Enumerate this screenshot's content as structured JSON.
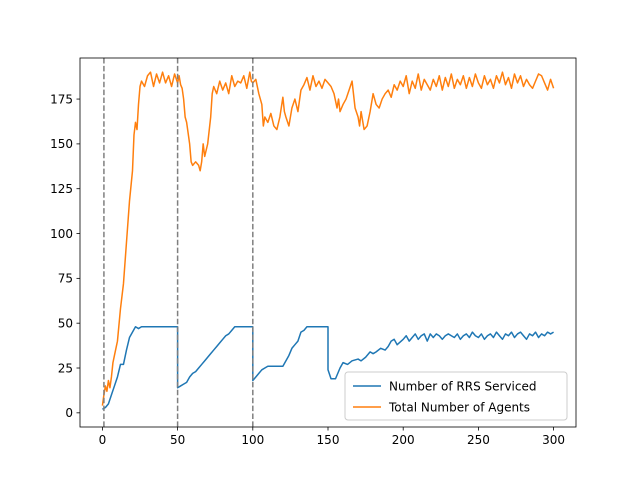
{
  "chart_data": {
    "type": "line",
    "title": "",
    "xlabel": "",
    "ylabel": "",
    "xlim": [
      -14.9,
      314.9
    ],
    "ylim": [
      -7.9,
      197.9
    ],
    "x_ticks": [
      0,
      50,
      100,
      150,
      200,
      250,
      300
    ],
    "y_ticks": [
      0,
      25,
      50,
      75,
      100,
      125,
      150,
      175
    ],
    "vlines": [
      1,
      50,
      100
    ],
    "legend_position": "lower right",
    "grid": false,
    "series": [
      {
        "name": "Number of RRS Serviced",
        "color": "#1f77b4",
        "points": [
          [
            0,
            2
          ],
          [
            2,
            3
          ],
          [
            4,
            5
          ],
          [
            6,
            10
          ],
          [
            8,
            15
          ],
          [
            10,
            20
          ],
          [
            12,
            27
          ],
          [
            14,
            27
          ],
          [
            16,
            35
          ],
          [
            18,
            42
          ],
          [
            20,
            45
          ],
          [
            22,
            48
          ],
          [
            24,
            47
          ],
          [
            26,
            48
          ],
          [
            30,
            48
          ],
          [
            35,
            48
          ],
          [
            40,
            48
          ],
          [
            45,
            48
          ],
          [
            50,
            48
          ],
          [
            50,
            14
          ],
          [
            52,
            15
          ],
          [
            54,
            16
          ],
          [
            56,
            17
          ],
          [
            58,
            20
          ],
          [
            60,
            22
          ],
          [
            62,
            23
          ],
          [
            64,
            25
          ],
          [
            66,
            27
          ],
          [
            68,
            29
          ],
          [
            70,
            31
          ],
          [
            72,
            33
          ],
          [
            74,
            35
          ],
          [
            76,
            37
          ],
          [
            78,
            39
          ],
          [
            80,
            41
          ],
          [
            82,
            43
          ],
          [
            84,
            44
          ],
          [
            86,
            46
          ],
          [
            88,
            48
          ],
          [
            92,
            48
          ],
          [
            96,
            48
          ],
          [
            100,
            48
          ],
          [
            100,
            18
          ],
          [
            102,
            20
          ],
          [
            104,
            22
          ],
          [
            106,
            24
          ],
          [
            108,
            25
          ],
          [
            110,
            26
          ],
          [
            115,
            26
          ],
          [
            120,
            26
          ],
          [
            124,
            32
          ],
          [
            126,
            36
          ],
          [
            128,
            38
          ],
          [
            130,
            40
          ],
          [
            132,
            45
          ],
          [
            134,
            46
          ],
          [
            136,
            48
          ],
          [
            140,
            48
          ],
          [
            145,
            48
          ],
          [
            150,
            48
          ],
          [
            150,
            24
          ],
          [
            152,
            19
          ],
          [
            155,
            19
          ],
          [
            158,
            25
          ],
          [
            160,
            28
          ],
          [
            163,
            27
          ],
          [
            166,
            29
          ],
          [
            170,
            30
          ],
          [
            172,
            29
          ],
          [
            175,
            31
          ],
          [
            178,
            34
          ],
          [
            180,
            33
          ],
          [
            182,
            34
          ],
          [
            185,
            36
          ],
          [
            188,
            35
          ],
          [
            190,
            37
          ],
          [
            192,
            40
          ],
          [
            194,
            41
          ],
          [
            196,
            38
          ],
          [
            200,
            41
          ],
          [
            202,
            43
          ],
          [
            204,
            40
          ],
          [
            206,
            42
          ],
          [
            208,
            44
          ],
          [
            210,
            41
          ],
          [
            212,
            43
          ],
          [
            214,
            44
          ],
          [
            216,
            40
          ],
          [
            218,
            44
          ],
          [
            220,
            42
          ],
          [
            222,
            44
          ],
          [
            224,
            43
          ],
          [
            226,
            41
          ],
          [
            228,
            43
          ],
          [
            230,
            44
          ],
          [
            232,
            43
          ],
          [
            234,
            42
          ],
          [
            236,
            44
          ],
          [
            238,
            41
          ],
          [
            240,
            43
          ],
          [
            242,
            44
          ],
          [
            244,
            42
          ],
          [
            246,
            45
          ],
          [
            248,
            43
          ],
          [
            250,
            42
          ],
          [
            252,
            44
          ],
          [
            254,
            41
          ],
          [
            256,
            43
          ],
          [
            258,
            44
          ],
          [
            260,
            42
          ],
          [
            262,
            45
          ],
          [
            264,
            43
          ],
          [
            266,
            41
          ],
          [
            268,
            44
          ],
          [
            270,
            43
          ],
          [
            272,
            45
          ],
          [
            274,
            42
          ],
          [
            276,
            44
          ],
          [
            278,
            45
          ],
          [
            280,
            43
          ],
          [
            282,
            41
          ],
          [
            284,
            44
          ],
          [
            286,
            43
          ],
          [
            288,
            45
          ],
          [
            290,
            42
          ],
          [
            292,
            44
          ],
          [
            294,
            43
          ],
          [
            296,
            45
          ],
          [
            298,
            44
          ],
          [
            300,
            45
          ]
        ]
      },
      {
        "name": "Total Number of Agents",
        "color": "#ff7f0e",
        "points": [
          [
            0,
            4
          ],
          [
            1,
            10
          ],
          [
            2,
            15
          ],
          [
            3,
            12
          ],
          [
            4,
            18
          ],
          [
            5,
            14
          ],
          [
            6,
            20
          ],
          [
            7,
            28
          ],
          [
            8,
            32
          ],
          [
            10,
            40
          ],
          [
            12,
            58
          ],
          [
            14,
            72
          ],
          [
            16,
            95
          ],
          [
            18,
            118
          ],
          [
            20,
            135
          ],
          [
            21,
            155
          ],
          [
            22,
            162
          ],
          [
            23,
            158
          ],
          [
            24,
            172
          ],
          [
            25,
            182
          ],
          [
            26,
            185
          ],
          [
            28,
            182
          ],
          [
            30,
            188
          ],
          [
            32,
            190
          ],
          [
            34,
            182
          ],
          [
            36,
            189
          ],
          [
            38,
            184
          ],
          [
            40,
            190
          ],
          [
            42,
            184
          ],
          [
            44,
            188
          ],
          [
            46,
            182
          ],
          [
            48,
            189
          ],
          [
            50,
            184
          ],
          [
            51,
            188
          ],
          [
            52,
            183
          ],
          [
            53,
            181
          ],
          [
            54,
            175
          ],
          [
            55,
            165
          ],
          [
            56,
            162
          ],
          [
            58,
            150
          ],
          [
            59,
            140
          ],
          [
            60,
            138
          ],
          [
            62,
            140
          ],
          [
            64,
            138
          ],
          [
            65,
            135
          ],
          [
            66,
            140
          ],
          [
            67,
            150
          ],
          [
            68,
            143
          ],
          [
            70,
            150
          ],
          [
            72,
            165
          ],
          [
            73,
            178
          ],
          [
            74,
            182
          ],
          [
            76,
            178
          ],
          [
            78,
            185
          ],
          [
            80,
            180
          ],
          [
            82,
            184
          ],
          [
            84,
            178
          ],
          [
            86,
            188
          ],
          [
            88,
            182
          ],
          [
            90,
            185
          ],
          [
            92,
            184
          ],
          [
            94,
            188
          ],
          [
            96,
            181
          ],
          [
            98,
            190
          ],
          [
            99,
            185
          ],
          [
            100,
            184
          ],
          [
            102,
            186
          ],
          [
            104,
            178
          ],
          [
            106,
            172
          ],
          [
            107,
            160
          ],
          [
            108,
            165
          ],
          [
            110,
            162
          ],
          [
            112,
            167
          ],
          [
            114,
            160
          ],
          [
            116,
            158
          ],
          [
            118,
            165
          ],
          [
            120,
            176
          ],
          [
            121,
            168
          ],
          [
            122,
            165
          ],
          [
            124,
            160
          ],
          [
            126,
            170
          ],
          [
            128,
            175
          ],
          [
            130,
            168
          ],
          [
            132,
            180
          ],
          [
            134,
            183
          ],
          [
            136,
            187
          ],
          [
            138,
            180
          ],
          [
            140,
            188
          ],
          [
            142,
            182
          ],
          [
            144,
            185
          ],
          [
            146,
            181
          ],
          [
            148,
            186
          ],
          [
            150,
            184
          ],
          [
            152,
            182
          ],
          [
            154,
            178
          ],
          [
            156,
            170
          ],
          [
            157,
            175
          ],
          [
            158,
            168
          ],
          [
            160,
            172
          ],
          [
            162,
            175
          ],
          [
            164,
            180
          ],
          [
            166,
            185
          ],
          [
            168,
            170
          ],
          [
            170,
            165
          ],
          [
            171,
            160
          ],
          [
            172,
            168
          ],
          [
            174,
            158
          ],
          [
            176,
            160
          ],
          [
            178,
            168
          ],
          [
            180,
            178
          ],
          [
            182,
            172
          ],
          [
            184,
            170
          ],
          [
            186,
            175
          ],
          [
            188,
            178
          ],
          [
            190,
            180
          ],
          [
            192,
            176
          ],
          [
            194,
            183
          ],
          [
            196,
            180
          ],
          [
            198,
            185
          ],
          [
            200,
            182
          ],
          [
            202,
            188
          ],
          [
            204,
            178
          ],
          [
            206,
            185
          ],
          [
            208,
            181
          ],
          [
            210,
            189
          ],
          [
            212,
            180
          ],
          [
            214,
            186
          ],
          [
            216,
            183
          ],
          [
            218,
            180
          ],
          [
            220,
            186
          ],
          [
            222,
            182
          ],
          [
            224,
            188
          ],
          [
            226,
            180
          ],
          [
            228,
            187
          ],
          [
            230,
            182
          ],
          [
            232,
            189
          ],
          [
            234,
            181
          ],
          [
            236,
            186
          ],
          [
            238,
            183
          ],
          [
            240,
            188
          ],
          [
            242,
            181
          ],
          [
            244,
            187
          ],
          [
            246,
            182
          ],
          [
            248,
            189
          ],
          [
            250,
            184
          ],
          [
            252,
            181
          ],
          [
            254,
            188
          ],
          [
            256,
            183
          ],
          [
            258,
            186
          ],
          [
            260,
            181
          ],
          [
            262,
            188
          ],
          [
            264,
            184
          ],
          [
            266,
            190
          ],
          [
            268,
            183
          ],
          [
            270,
            187
          ],
          [
            272,
            181
          ],
          [
            274,
            189
          ],
          [
            276,
            184
          ],
          [
            278,
            188
          ],
          [
            280,
            182
          ],
          [
            282,
            186
          ],
          [
            284,
            183
          ],
          [
            286,
            181
          ],
          [
            288,
            185
          ],
          [
            290,
            189
          ],
          [
            292,
            188
          ],
          [
            294,
            184
          ],
          [
            296,
            180
          ],
          [
            298,
            186
          ],
          [
            300,
            181
          ]
        ]
      }
    ]
  }
}
